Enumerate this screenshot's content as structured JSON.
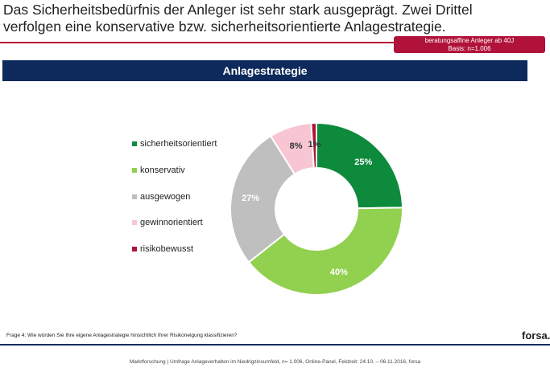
{
  "header": {
    "headline_line1": "Das Sicherheitsbedürfnis der Anleger ist sehr stark ausgeprägt. Zwei Drittel",
    "headline_line2": "verfolgen eine konservative bzw. sicherheitsorientierte Anlagestrategie.",
    "badge_line1": "beratungsaffine Anleger ab 40J",
    "badge_line2": "Basis: n=1.006",
    "accent_color": "#b0123a"
  },
  "section": {
    "title": "Anlagestrategie",
    "bar_color": "#0e2a5c"
  },
  "chart_data": {
    "type": "pie",
    "donut": true,
    "title": "Anlagestrategie",
    "legend_position": "left",
    "slices": [
      {
        "label": "sicherheitsorientiert",
        "value": 25,
        "value_label": "25%",
        "color": "#0e8a3c"
      },
      {
        "label": "konservativ",
        "value": 40,
        "value_label": "40%",
        "color": "#92d050"
      },
      {
        "label": "ausgewogen",
        "value": 27,
        "value_label": "27%",
        "color": "#bfbfbf"
      },
      {
        "label": "gewinnorientiert",
        "value": 8,
        "value_label": "8%",
        "color": "#f7c6d2"
      },
      {
        "label": "risikobewusst",
        "value": 1,
        "value_label": "1%",
        "color": "#b0123a"
      }
    ]
  },
  "footer": {
    "question": "Frage 4: Wie würden Sie Ihre eigene Anlagestrategie hinsichtlich Ihrer Risikoneigung klassifizieren?",
    "brand": "forsa.",
    "source": "Marktforschung | Umfrage Anlageverhalten im Niedrigzinsumfeld, n= 1.006, Online-Panel, Feldzeit: 24.10. – 06.11.2016, forsa"
  }
}
